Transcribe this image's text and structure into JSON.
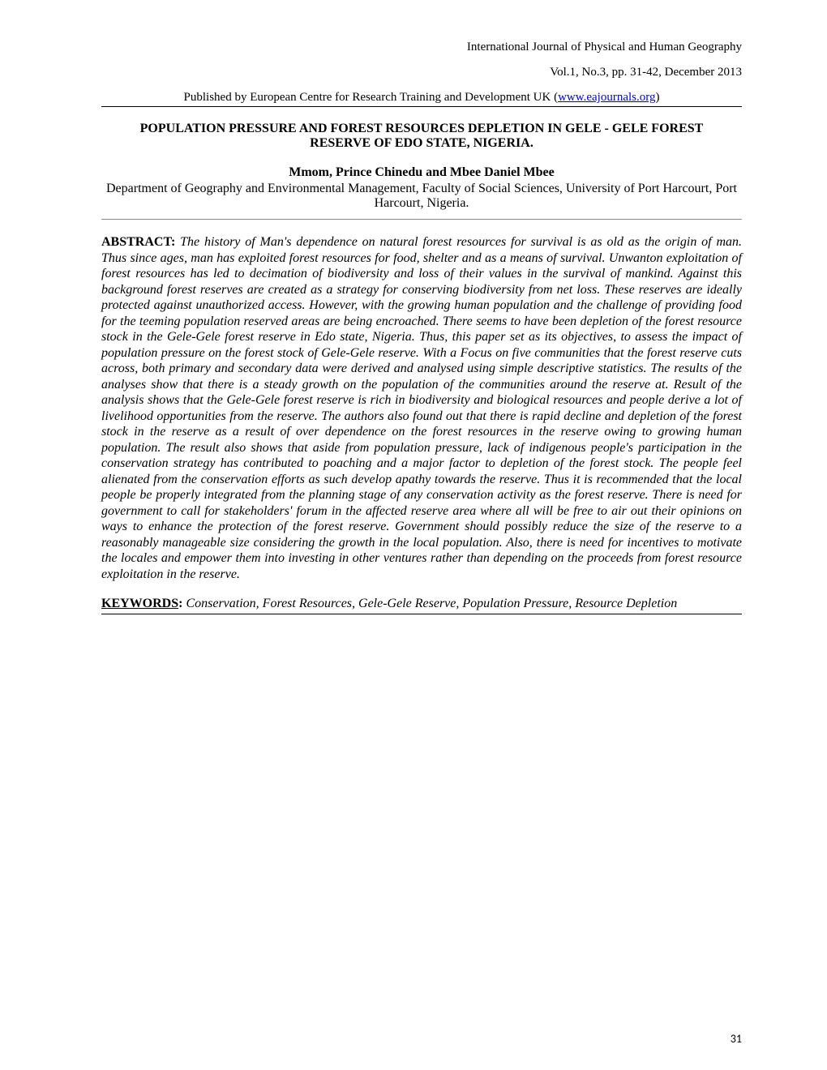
{
  "header": {
    "journal_name": "International Journal of Physical and Human Geography",
    "vol_info": "Vol.1, No.3, pp. 31-42, December 2013",
    "publisher_prefix": "Published by European Centre for Research Training and Development UK (",
    "publisher_link": "www.eajournals.org",
    "publisher_suffix": ")"
  },
  "title": "POPULATION PRESSURE AND FOREST RESOURCES DEPLETION IN GELE - GELE FOREST RESERVE OF EDO STATE, NIGERIA.",
  "authors": "Mmom, Prince Chinedu and Mbee Daniel Mbee",
  "affiliation": "Department of Geography and Environmental Management, Faculty of Social Sciences, University of Port Harcourt, Port Harcourt, Nigeria.",
  "abstract": {
    "label": "ABSTRACT:",
    "text": " The history of Man's dependence on natural forest resources for survival is as old as the origin of man. Thus since ages, man has exploited forest resources for food, shelter and as a means of survival. Unwanton exploitation of forest resources has led to decimation of biodiversity and loss of their values in the survival of mankind. Against this background forest reserves are created as a strategy for conserving biodiversity from net loss. These reserves are ideally protected against unauthorized access. However, with the growing human population and the challenge of providing food for the teeming population reserved areas are being encroached. There seems to have been depletion of the forest resource stock in the Gele-Gele forest reserve in Edo state, Nigeria. Thus, this paper set as its objectives, to assess the impact of population pressure on the forest stock of Gele-Gele reserve. With a Focus on five communities that the forest reserve cuts across, both primary and secondary data were derived and analysed using simple descriptive statistics. The results of the analyses show that there is a steady growth on the population of the communities around the reserve at. Result of the analysis shows that the Gele-Gele forest reserve is rich in biodiversity and biological resources and people derive a lot of livelihood opportunities from the reserve. The authors also found out that there is rapid decline and depletion of the forest stock in the reserve as a result of over dependence on the forest resources in the reserve owing to growing human population. The result also shows that aside from population pressure, lack of indigenous people's participation in the conservation strategy has contributed to poaching and a major factor to depletion of the forest stock. The people feel alienated from the conservation efforts as such develop apathy towards the reserve. Thus it is recommended that the local people be properly integrated from the planning stage of any conservation activity as the forest reserve. There is need for government to call for stakeholders' forum in the affected reserve area where all will be free to air out their opinions on ways to enhance the protection of the forest reserve. Government should possibly reduce the size of the reserve to a reasonably manageable size considering the growth in the local population. Also, there is need for incentives to motivate the locales and empower them into investing in other ventures rather than depending on the proceeds from forest resource exploitation in the reserve."
  },
  "keywords": {
    "label": "KEYWORDS",
    "colon": ":",
    "text": " Conservation, Forest Resources, Gele-Gele Reserve, Population Pressure, Resource Depletion"
  },
  "page_number": "31",
  "colors": {
    "background": "#ffffff",
    "text": "#000000",
    "link": "#0000ee",
    "hr": "#888888"
  },
  "typography": {
    "body_font": "Times New Roman",
    "body_size_pt": 12,
    "title_weight": "bold",
    "abstract_style": "italic",
    "line_height": 1.22
  }
}
